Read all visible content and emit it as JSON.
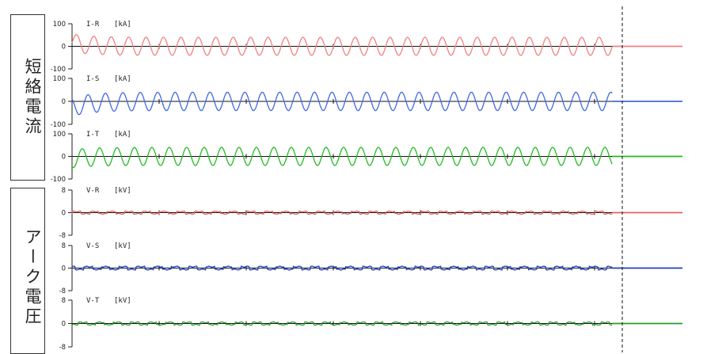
{
  "group_labels": {
    "current": "短絡電流",
    "voltage": "アーク電圧"
  },
  "chart_data": [
    {
      "type": "line",
      "label": "I-R",
      "unit": "[kA]",
      "color": "#f08080",
      "ylim": [
        -100,
        100
      ],
      "ticks": [
        "100",
        "0",
        "-100"
      ],
      "waveform": "sine",
      "amplitude": 40,
      "offset_start": 15,
      "cycles": 31,
      "end_fraction": 0.885
    },
    {
      "type": "line",
      "label": "I-S",
      "unit": "[kA]",
      "color": "#4169e1",
      "ylim": [
        -100,
        100
      ],
      "ticks": [
        "100",
        "0",
        "-100"
      ],
      "waveform": "sine",
      "amplitude": 40,
      "offset_start": -25,
      "cycles": 31,
      "end_fraction": 0.885
    },
    {
      "type": "line",
      "label": "I-T",
      "unit": "[kA]",
      "color": "#22bb22",
      "ylim": [
        -100,
        100
      ],
      "ticks": [
        "100",
        "0",
        "-100"
      ],
      "waveform": "sine",
      "amplitude": 40,
      "offset_start": -10,
      "cycles": 31,
      "end_fraction": 0.885
    },
    {
      "type": "line",
      "label": "V-R",
      "unit": "[kV]",
      "color": "#e06060",
      "ylim": [
        -8,
        8
      ],
      "ticks": [
        "8",
        "0",
        "-8"
      ],
      "waveform": "arc",
      "amplitude": 0.4,
      "cycles": 31,
      "end_fraction": 0.885
    },
    {
      "type": "line",
      "label": "V-S",
      "unit": "[kV]",
      "color": "#1f3fbf",
      "ylim": [
        -8,
        8
      ],
      "ticks": [
        "8",
        "0",
        "-8"
      ],
      "waveform": "arc",
      "amplitude": 0.5,
      "cycles": 31,
      "end_fraction": 0.885
    },
    {
      "type": "line",
      "label": "V-T",
      "unit": "[kV]",
      "color": "#2a9a2a",
      "ylim": [
        -8,
        8
      ],
      "ticks": [
        "8",
        "0",
        "-8"
      ],
      "waveform": "arc",
      "amplitude": 0.4,
      "cycles": 31,
      "end_fraction": 0.885
    }
  ]
}
